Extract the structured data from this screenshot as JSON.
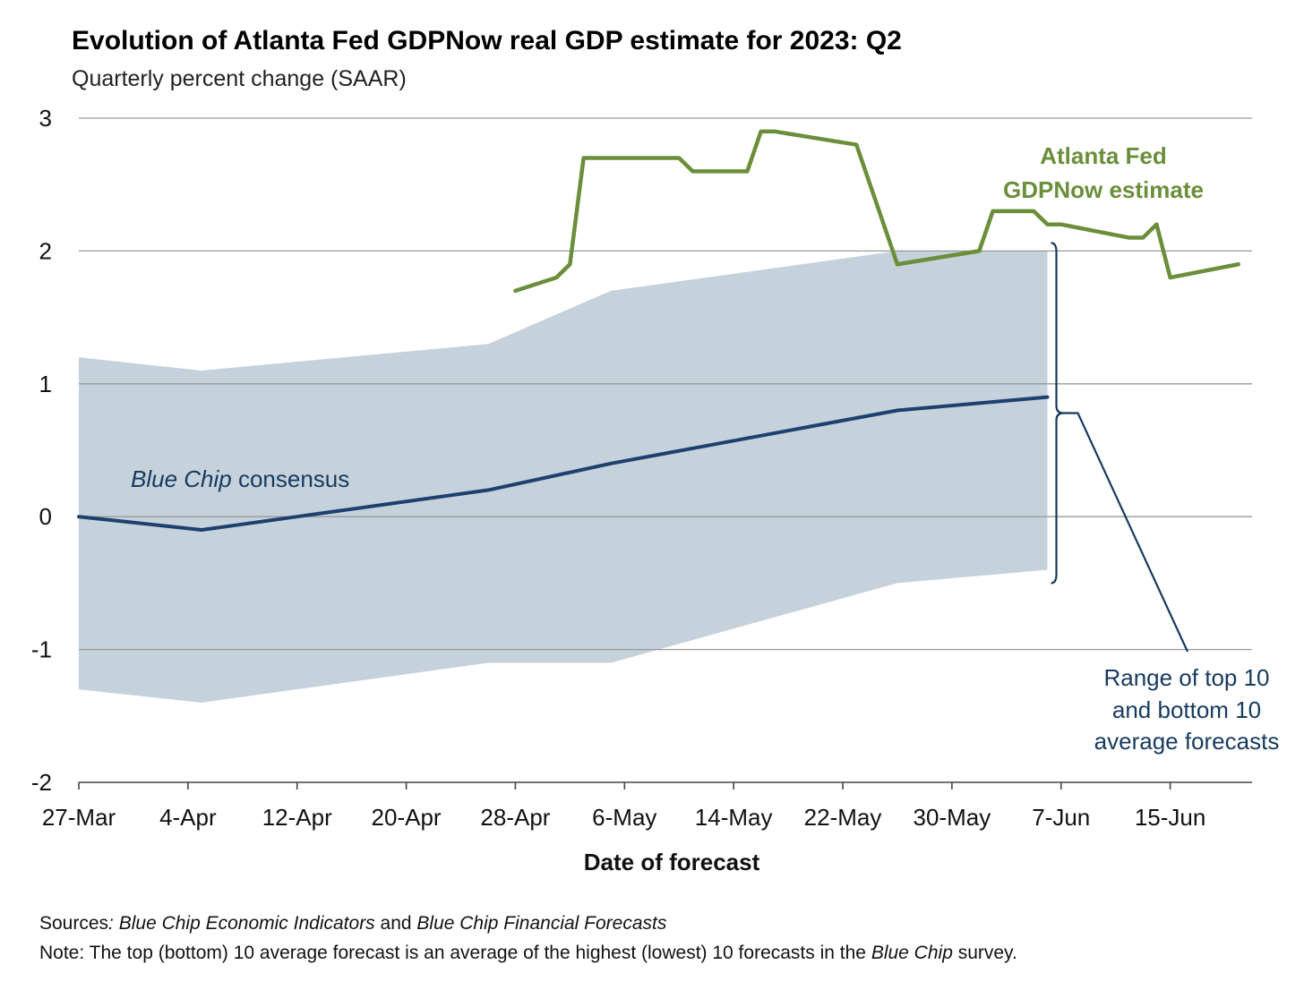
{
  "header": {
    "title": "Evolution of Atlanta Fed GDPNow real GDP estimate for 2023: Q2",
    "subtitle": "Quarterly percent change (SAAR)"
  },
  "annotations": {
    "gdpnow_line1": "Atlanta Fed",
    "gdpnow_line2": "GDPNow estimate",
    "bluechip_italic": "Blue Chip",
    "bluechip_rest": " consensus",
    "range_line1": "Range of top 10",
    "range_line2": "and bottom 10",
    "range_line3": "average forecasts"
  },
  "footer": {
    "sources_label": "Sources",
    "sources_text1": ": Blue Chip Economic Indicators",
    "sources_and": " and ",
    "sources_text2": "Blue Chip Financial Forecasts",
    "note_label": "Note:",
    "note_text1": " The top (bottom) 10 average forecast is an average of the highest (lowest) 10 forecasts in the ",
    "note_italic": "Blue Chip",
    "note_text2": " survey."
  },
  "colors": {
    "gdpnow": "#6b8e3a",
    "consensus": "#1f3f6e",
    "band": "#c5d2dc",
    "grid": "#9a9a9a",
    "bracket": "#173a5e"
  },
  "chart_data": {
    "type": "line",
    "xlabel": "Date of forecast",
    "ylabel": "",
    "ylim": [
      -2,
      3
    ],
    "yticks": [
      -2,
      -1,
      0,
      1,
      2,
      3
    ],
    "xtick_labels": [
      "27-Mar",
      "4-Apr",
      "12-Apr",
      "20-Apr",
      "28-Apr",
      "6-May",
      "14-May",
      "22-May",
      "30-May",
      "7-Jun",
      "15-Jun"
    ],
    "xtick_days": [
      0,
      8,
      16,
      24,
      32,
      40,
      48,
      56,
      64,
      72,
      80
    ],
    "x_range_days": [
      0,
      86
    ],
    "grid": true,
    "series": [
      {
        "name": "Atlanta Fed GDPNow estimate",
        "kind": "line",
        "x": [
          "2023-04-28",
          "2023-05-01",
          "2023-05-02",
          "2023-05-03",
          "2023-05-10",
          "2023-05-11",
          "2023-05-15",
          "2023-05-16",
          "2023-05-17",
          "2023-05-23",
          "2023-05-26",
          "2023-06-01",
          "2023-06-02",
          "2023-06-05",
          "2023-06-06",
          "2023-06-07",
          "2023-06-12",
          "2023-06-13",
          "2023-06-14",
          "2023-06-15",
          "2023-06-20"
        ],
        "y": [
          1.7,
          1.8,
          1.9,
          2.7,
          2.7,
          2.6,
          2.6,
          2.9,
          2.9,
          2.8,
          1.9,
          2.0,
          2.3,
          2.3,
          2.2,
          2.2,
          2.1,
          2.1,
          2.2,
          1.8,
          1.9
        ]
      },
      {
        "name": "Blue Chip consensus",
        "kind": "line",
        "x": [
          "2023-03-27",
          "2023-04-05",
          "2023-04-12",
          "2023-04-26",
          "2023-05-05",
          "2023-05-26",
          "2023-06-06"
        ],
        "y": [
          0.0,
          -0.1,
          0.0,
          0.2,
          0.4,
          0.8,
          0.9
        ]
      },
      {
        "name": "Range of top 10 and bottom 10 average forecasts",
        "kind": "band",
        "x": [
          "2023-03-27",
          "2023-04-05",
          "2023-04-26",
          "2023-05-05",
          "2023-05-26",
          "2023-06-06"
        ],
        "upper": [
          1.2,
          1.1,
          1.3,
          1.7,
          2.0,
          2.0
        ],
        "lower": [
          -1.3,
          -1.4,
          -1.1,
          -1.1,
          -0.5,
          -0.4
        ]
      }
    ]
  }
}
